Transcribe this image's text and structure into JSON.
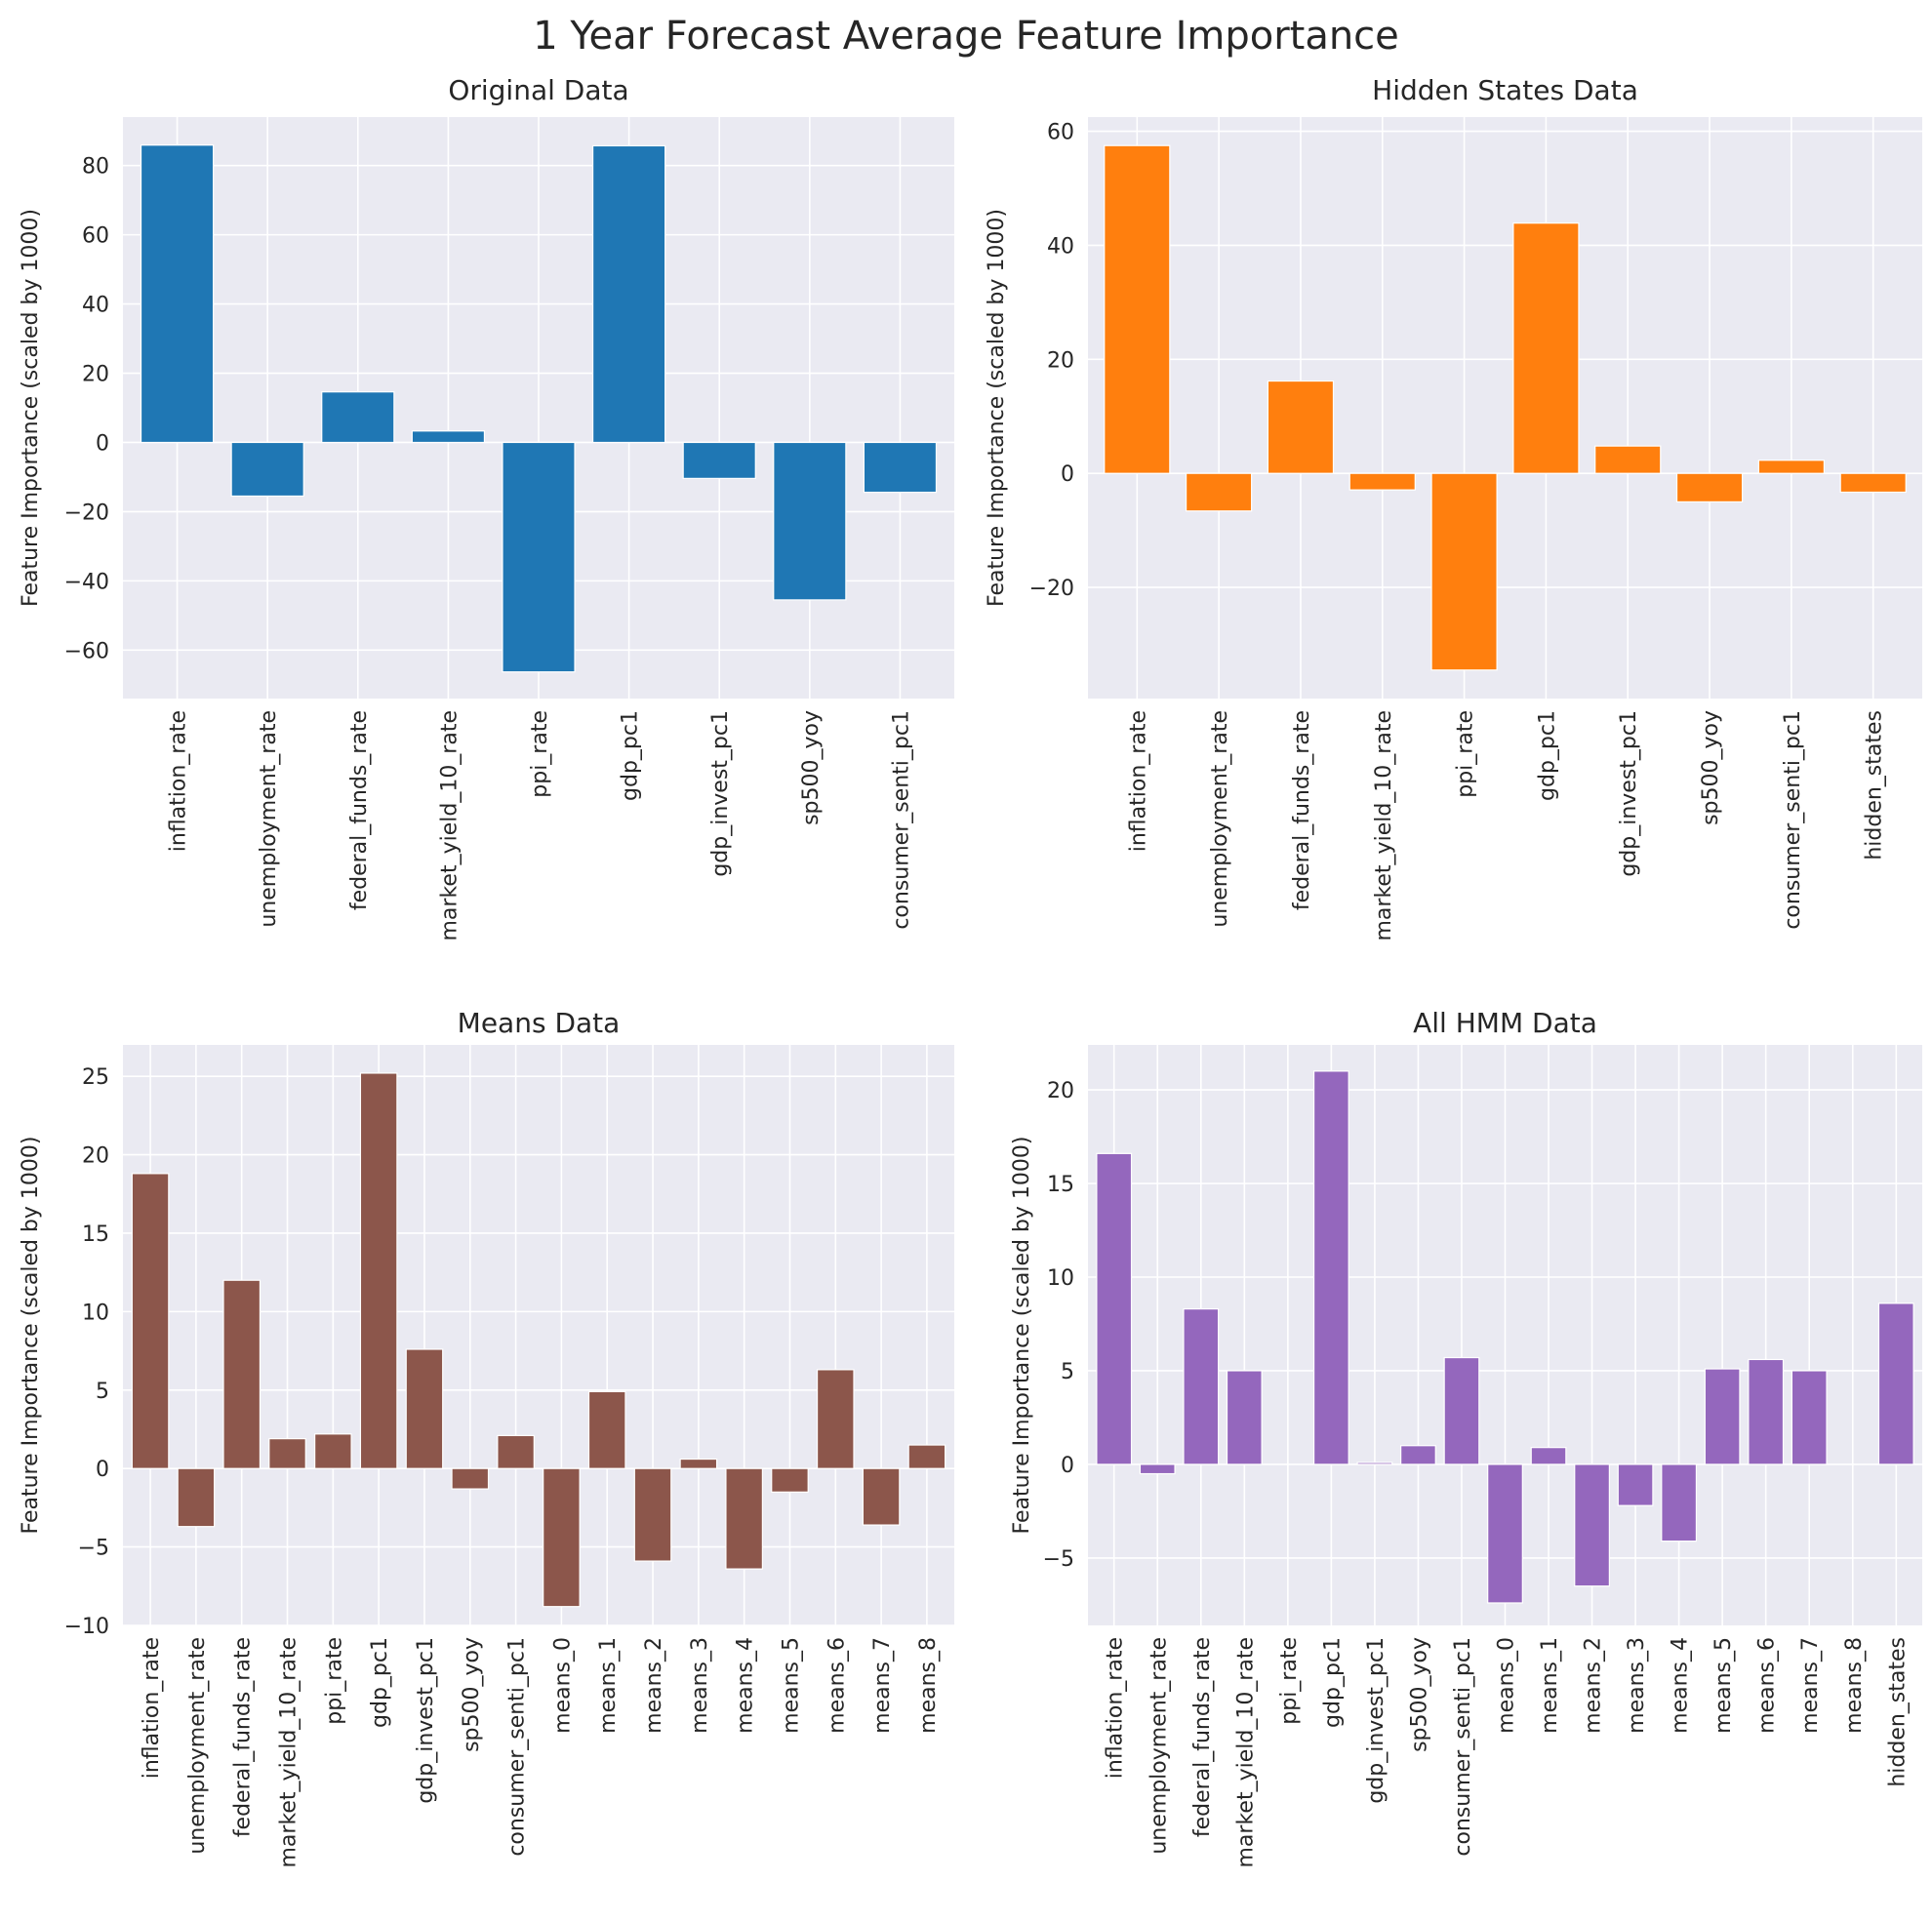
{
  "figure": {
    "title": "1 Year Forecast Average Feature Importance"
  },
  "chart_data": [
    {
      "type": "bar",
      "title": "Original Data",
      "xlabel": "",
      "ylabel": "Feature Importance (scaled by 1000)",
      "color": "#1f77b4",
      "ylim": [
        -74,
        94
      ],
      "yticks": [
        -60,
        -40,
        -20,
        0,
        20,
        40,
        60,
        80
      ],
      "categories": [
        "inflation_rate",
        "unemployment_rate",
        "federal_funds_rate",
        "market_yield_10_rate",
        "ppi_rate",
        "gdp_pc1",
        "gdp_invest_pc1",
        "sp500_yoy",
        "consumer_senti_pc1"
      ],
      "values": [
        85.9,
        -15.5,
        14.6,
        3.3,
        -66.3,
        85.7,
        -10.4,
        -45.5,
        -14.4
      ]
    },
    {
      "type": "bar",
      "title": "Hidden States Data",
      "xlabel": "",
      "ylabel": "Feature Importance (scaled by 1000)",
      "color": "#ff7f0e",
      "ylim": [
        -39.5,
        62.5
      ],
      "yticks": [
        -20,
        0,
        20,
        40,
        60
      ],
      "categories": [
        "inflation_rate",
        "unemployment_rate",
        "federal_funds_rate",
        "market_yield_10_rate",
        "ppi_rate",
        "gdp_pc1",
        "gdp_invest_pc1",
        "sp500_yoy",
        "consumer_senti_pc1",
        "hidden_states"
      ],
      "values": [
        57.5,
        -6.6,
        16.2,
        -2.9,
        -34.5,
        43.9,
        4.8,
        -5.0,
        2.3,
        -3.3
      ]
    },
    {
      "type": "bar",
      "title": "Means Data",
      "xlabel": "",
      "ylabel": "Feature Importance (scaled by 1000)",
      "color": "#8c564b",
      "ylim": [
        -10,
        27
      ],
      "yticks": [
        -10,
        -5,
        0,
        5,
        10,
        15,
        20,
        25
      ],
      "categories": [
        "inflation_rate",
        "unemployment_rate",
        "federal_funds_rate",
        "market_yield_10_rate",
        "ppi_rate",
        "gdp_pc1",
        "gdp_invest_pc1",
        "sp500_yoy",
        "consumer_senti_pc1",
        "means_0",
        "means_1",
        "means_2",
        "means_3",
        "means_4",
        "means_5",
        "means_6",
        "means_7",
        "means_8"
      ],
      "values": [
        18.8,
        -3.7,
        12.0,
        1.9,
        2.2,
        25.2,
        7.6,
        -1.3,
        2.1,
        -8.8,
        4.9,
        -5.9,
        0.6,
        -6.4,
        -1.5,
        6.3,
        -3.6,
        1.5
      ]
    },
    {
      "type": "bar",
      "title": "All HMM Data",
      "xlabel": "",
      "ylabel": "Feature Importance (scaled by 1000)",
      "color": "#9467bd",
      "ylim": [
        -8.6,
        22.4
      ],
      "yticks": [
        -5,
        0,
        5,
        10,
        15,
        20
      ],
      "categories": [
        "inflation_rate",
        "unemployment_rate",
        "federal_funds_rate",
        "market_yield_10_rate",
        "ppi_rate",
        "gdp_pc1",
        "gdp_invest_pc1",
        "sp500_yoy",
        "consumer_senti_pc1",
        "means_0",
        "means_1",
        "means_2",
        "means_3",
        "means_4",
        "means_5",
        "means_6",
        "means_7",
        "means_8",
        "hidden_states"
      ],
      "values": [
        16.6,
        -0.5,
        8.3,
        5.0,
        0.0,
        21.0,
        0.1,
        1.0,
        5.7,
        -7.4,
        0.9,
        -6.5,
        -2.2,
        -4.1,
        5.1,
        5.6,
        5.0,
        0.0,
        8.6
      ]
    }
  ]
}
